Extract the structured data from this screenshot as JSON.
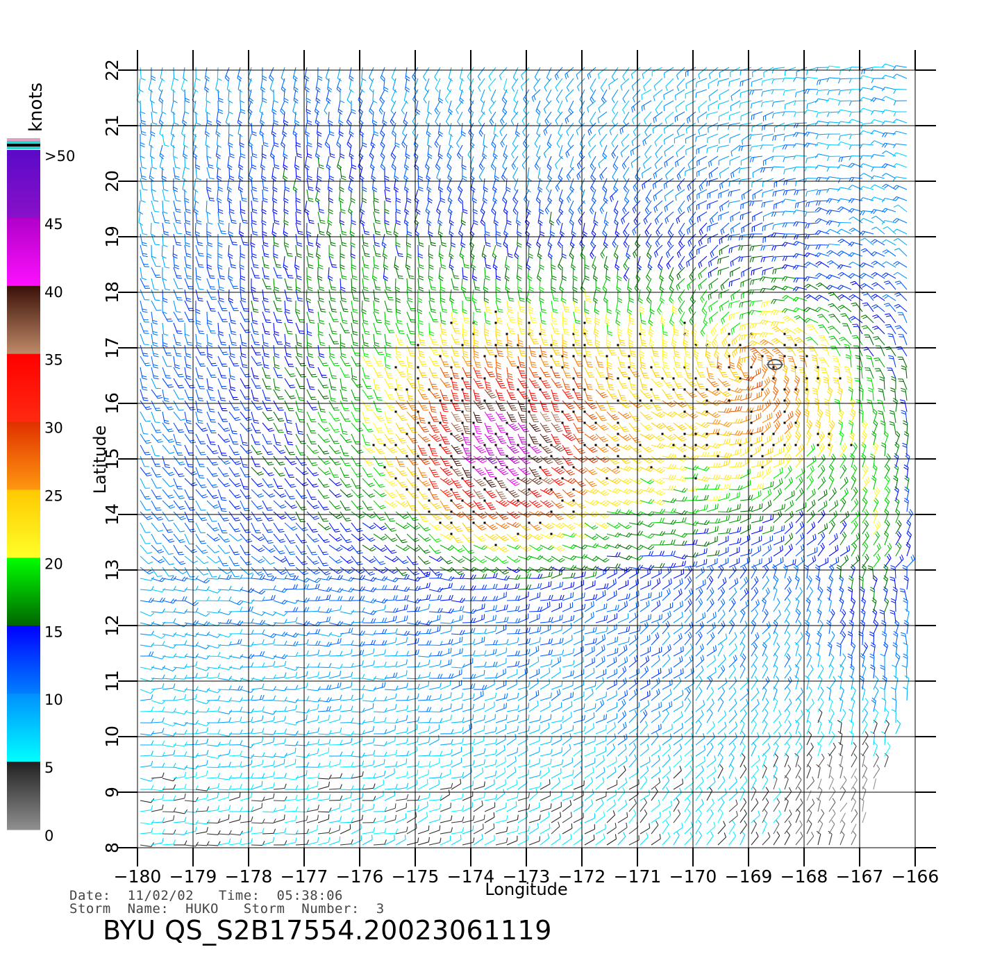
{
  "chart_data": {
    "type": "wind-barb field",
    "xlabel": "Longitude",
    "ylabel": "Latitude",
    "x_ticks": [
      -180,
      -179,
      -178,
      -177,
      -176,
      -175,
      -174,
      -173,
      -172,
      -171,
      -170,
      -169,
      -168,
      -167,
      -166
    ],
    "y_ticks": [
      8,
      9,
      10,
      11,
      12,
      13,
      14,
      15,
      16,
      17,
      18,
      19,
      20,
      21,
      22
    ],
    "xlim": [
      -180,
      -166
    ],
    "ylim": [
      8,
      22
    ],
    "grid": true,
    "storm_center": {
      "lon": -169.0,
      "lat": 16.7
    },
    "colorbar": {
      "title": "knots",
      "position": "left",
      "labels": [
        ">50",
        "45",
        "40",
        "35",
        "30",
        "25",
        "20",
        "15",
        "10",
        "5",
        "0"
      ],
      "bands": [
        {
          "from": 45,
          "to": 50,
          "color_top": "#5a0ac8",
          "color_bottom": "#8a10c8"
        },
        {
          "from": 40,
          "to": 45,
          "color_top": "#b000c8",
          "color_bottom": "#ff10ff"
        },
        {
          "from": 35,
          "to": 40,
          "color_top": "#3a1008",
          "color_bottom": "#c08a68"
        },
        {
          "from": 30,
          "to": 35,
          "color_top": "#ff0000",
          "color_bottom": "#ff2a10"
        },
        {
          "from": 25,
          "to": 30,
          "color_top": "#e03000",
          "color_bottom": "#ff9810"
        },
        {
          "from": 20,
          "to": 25,
          "color_top": "#ffc800",
          "color_bottom": "#ffff28"
        },
        {
          "from": 15,
          "to": 20,
          "color_top": "#00ff00",
          "color_bottom": "#006400"
        },
        {
          "from": 10,
          "to": 15,
          "color_top": "#0000ff",
          "color_bottom": "#0080ff"
        },
        {
          "from": 5,
          "to": 10,
          "color_top": "#0090ff",
          "color_bottom": "#00ffff"
        },
        {
          "from": 0,
          "to": 5,
          "color_top": "#202020",
          "color_bottom": "#909090"
        }
      ],
      "extra_stripes": [
        "#e0a0c0",
        "#30d0d0",
        "#000000",
        "#30d0d0"
      ]
    }
  },
  "footer": {
    "line1": "Date:  11/02/02   Time:  05:38:06",
    "line2": "Storm  Name:  HUKO   Storm  Number:  3",
    "title": "BYU  QS_S2B17554.20023061119"
  }
}
